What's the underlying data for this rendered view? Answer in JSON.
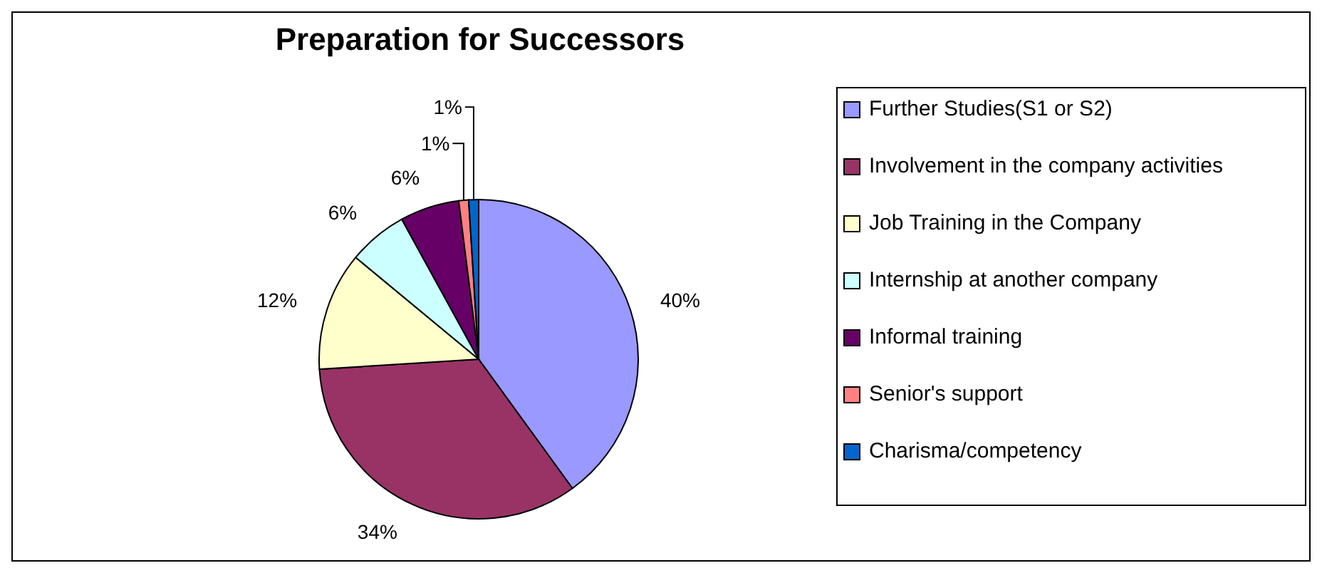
{
  "chart_data": {
    "type": "pie",
    "title": "Preparation for Successors",
    "categories": [
      "Further Studies(S1 or S2)",
      "Involvement in the company activities",
      "Job Training in the Company",
      "Internship at another company",
      "Informal training",
      "Senior's support",
      "Charisma/competency"
    ],
    "values": [
      40,
      34,
      12,
      6,
      6,
      1,
      1
    ],
    "colors": [
      "#9999ff",
      "#993366",
      "#ffffcc",
      "#ccffff",
      "#660066",
      "#ff8080",
      "#0066cc"
    ],
    "value_labels": [
      "40%",
      "34%",
      "12%",
      "6%",
      "6%",
      "1%",
      "1%"
    ],
    "legend": "right"
  }
}
